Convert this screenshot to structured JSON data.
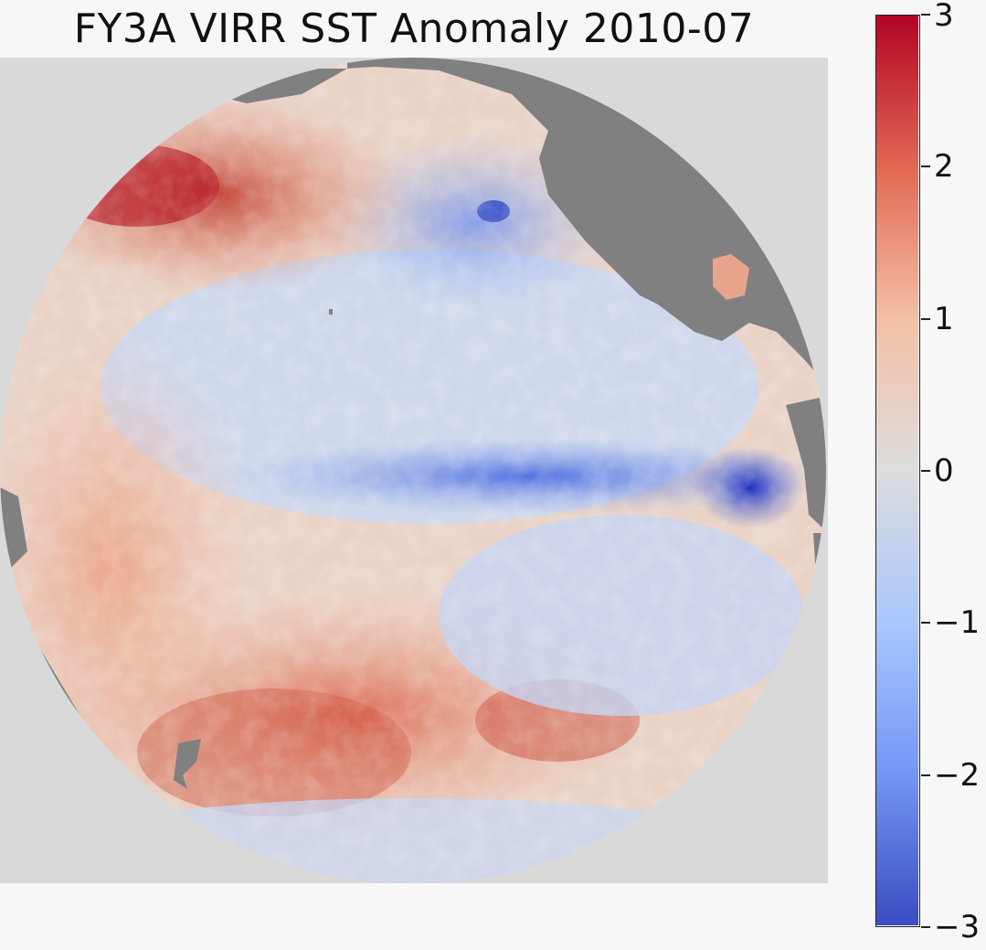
{
  "chart_data": {
    "type": "heatmap",
    "title": "FY3A VIRR SST Anomaly 2010-07",
    "projection": "orthographic",
    "variable": "SST Anomaly",
    "colormap": "coolwarm",
    "vmin": -3,
    "vmax": 3,
    "colorbar_ticks": [
      3,
      2,
      1,
      0,
      -1,
      -2,
      -3
    ],
    "colorbar_tick_labels": [
      "3",
      "2",
      "1",
      "0",
      "−1",
      "−2",
      "−3"
    ],
    "features": [
      {
        "name": "equatorial cold tongue",
        "anomaly": -2.5
      },
      {
        "name": "northwest warm patch",
        "anomaly": 2.5
      },
      {
        "name": "southern warm band",
        "anomaly": 1.5
      },
      {
        "name": "northeast cool region",
        "anomaly": -1.2
      }
    ]
  },
  "colors": {
    "land": "#808080",
    "background": "#d9d9d9",
    "cold": "#3b4cc0",
    "neutral": "#dddddd",
    "warm": "#b40426"
  }
}
